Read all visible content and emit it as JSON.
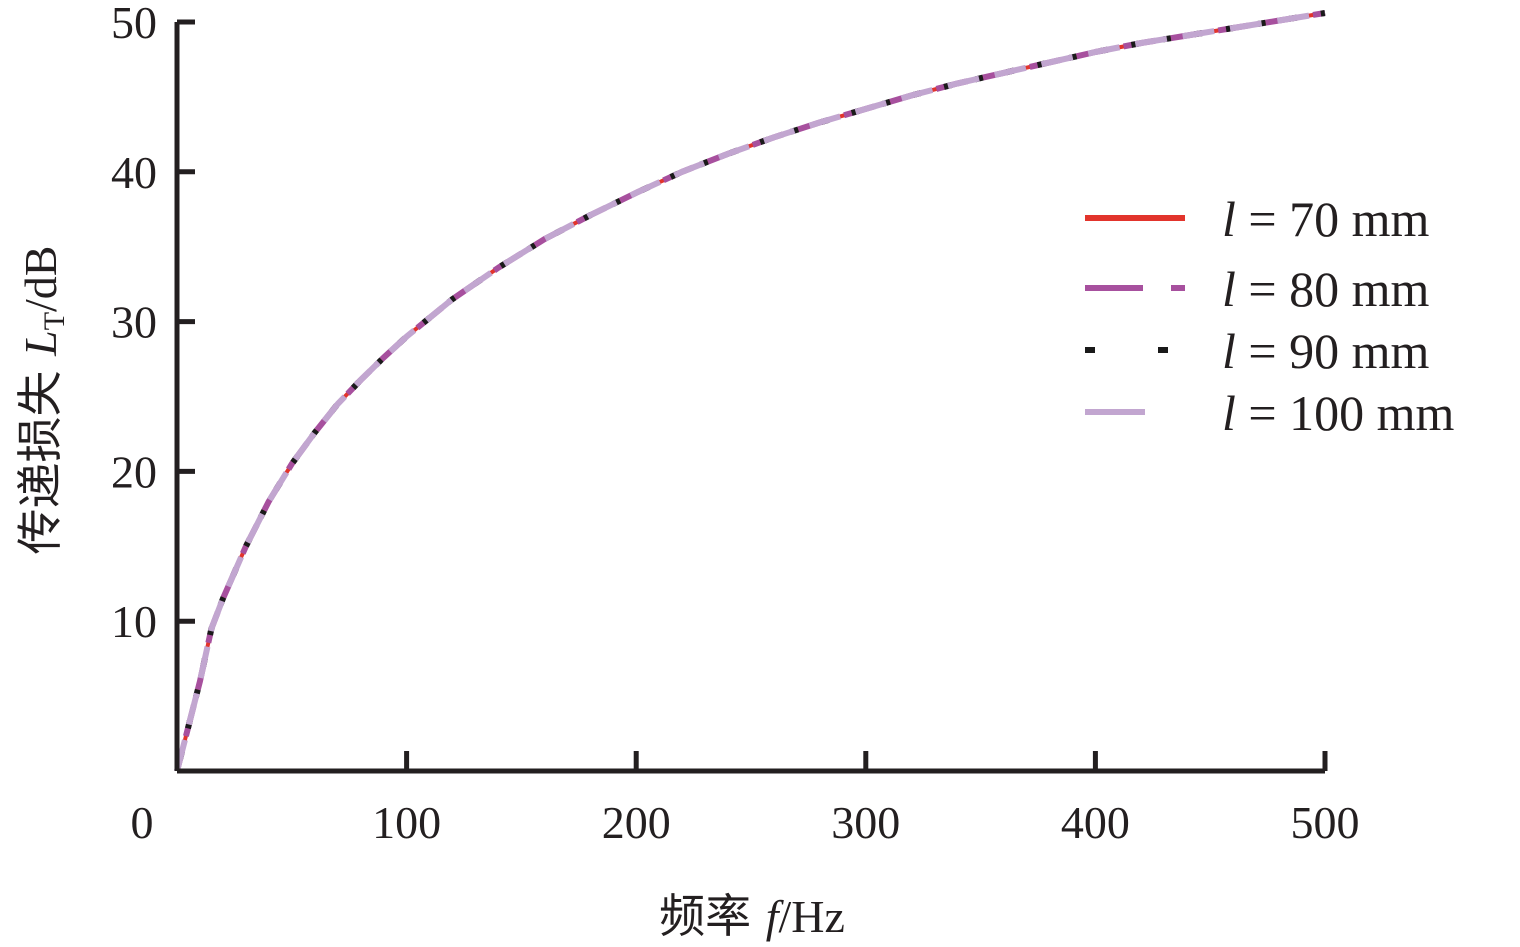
{
  "chart_data": {
    "type": "line",
    "xlabel": {
      "prefix": "频率 ",
      "var": "f",
      "unit": "/Hz"
    },
    "ylabel": {
      "prefix": "传递损失 ",
      "var": "L",
      "sub": "T",
      "unit": "/dB"
    },
    "xlim": [
      0,
      500
    ],
    "ylim": [
      0,
      50
    ],
    "x_ticks": [
      0,
      100,
      200,
      300,
      400,
      500
    ],
    "x_tick_labels": [
      "0",
      "100",
      "200",
      "300",
      "400",
      "500"
    ],
    "y_ticks": [
      10,
      20,
      30,
      40,
      50
    ],
    "y_tick_labels": [
      "10",
      "20",
      "30",
      "40",
      "50"
    ],
    "grid": false,
    "legend_position": "right",
    "x": [
      0,
      5,
      10,
      15,
      20,
      30,
      40,
      50,
      60,
      70,
      80,
      90,
      100,
      120,
      140,
      160,
      180,
      200,
      220,
      240,
      260,
      280,
      300,
      320,
      340,
      360,
      380,
      400,
      420,
      440,
      460,
      480,
      500
    ],
    "series": [
      {
        "name": "l = 70 mm",
        "var": "l",
        "text": " = 70 mm",
        "color": "#e2342c",
        "dash": "solid",
        "values": [
          0,
          3.0,
          6.0,
          9.5,
          11.5,
          15.0,
          18.0,
          20.5,
          22.6,
          24.5,
          26.1,
          27.6,
          29.0,
          31.5,
          33.6,
          35.5,
          37.1,
          38.6,
          40.0,
          41.2,
          42.3,
          43.3,
          44.2,
          45.1,
          45.9,
          46.6,
          47.3,
          48.0,
          48.6,
          49.1,
          49.6,
          50.1,
          50.6
        ]
      },
      {
        "name": "l = 80 mm",
        "var": "l",
        "text": " = 80 mm",
        "color": "#a7509e",
        "dash": "long-dash",
        "values": [
          0,
          3.0,
          6.0,
          9.5,
          11.5,
          15.0,
          18.0,
          20.5,
          22.6,
          24.5,
          26.1,
          27.6,
          29.0,
          31.5,
          33.6,
          35.5,
          37.1,
          38.6,
          40.0,
          41.2,
          42.3,
          43.3,
          44.2,
          45.1,
          45.9,
          46.6,
          47.3,
          48.0,
          48.6,
          49.1,
          49.6,
          50.1,
          50.6
        ]
      },
      {
        "name": "l = 90 mm",
        "var": "l",
        "text": " = 90 mm",
        "color": "#1a1a1a",
        "dash": "dashed",
        "values": [
          0,
          3.0,
          6.0,
          9.5,
          11.5,
          15.0,
          18.0,
          20.5,
          22.6,
          24.5,
          26.1,
          27.6,
          29.0,
          31.5,
          33.6,
          35.5,
          37.1,
          38.6,
          40.0,
          41.2,
          42.3,
          43.3,
          44.2,
          45.1,
          45.9,
          46.6,
          47.3,
          48.0,
          48.6,
          49.1,
          49.6,
          50.1,
          50.6
        ]
      },
      {
        "name": "l = 100 mm",
        "var": "l",
        "text": " = 100 mm",
        "color": "#c2a6d0",
        "dash": "long-dash",
        "values": [
          0,
          3.0,
          6.0,
          9.5,
          11.5,
          15.0,
          18.0,
          20.5,
          22.6,
          24.5,
          26.1,
          27.6,
          29.0,
          31.5,
          33.6,
          35.5,
          37.1,
          38.6,
          40.0,
          41.2,
          42.3,
          43.3,
          44.2,
          45.1,
          45.9,
          46.6,
          47.3,
          48.0,
          48.6,
          49.1,
          49.6,
          50.1,
          50.6
        ]
      }
    ]
  }
}
